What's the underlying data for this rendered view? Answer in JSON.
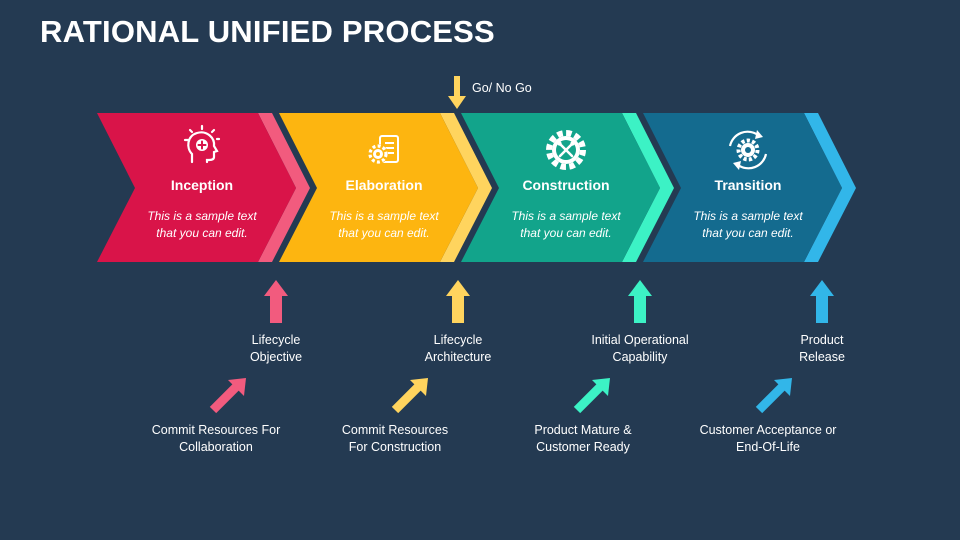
{
  "title": "RATIONAL UNIFIED PROCESS",
  "gate_label": "Go/ No Go",
  "phases": [
    {
      "name": "Inception",
      "desc_line1": "This is a sample text",
      "desc_line2": "that you can edit.",
      "color": "#D91449",
      "accent": "#F25B7E",
      "icon": "head-plus-icon"
    },
    {
      "name": "Elaboration",
      "desc_line1": "This is a sample text",
      "desc_line2": "that you can edit.",
      "color": "#FDB510",
      "accent": "#FFD45E",
      "icon": "document-gear-icon"
    },
    {
      "name": "Construction",
      "desc_line1": "This is a sample text",
      "desc_line2": "that you can edit.",
      "color": "#12A48B",
      "accent": "#3CF2C5",
      "icon": "gear-tools-icon"
    },
    {
      "name": "Transition",
      "desc_line1": "This is a sample text",
      "desc_line2": "that you can edit.",
      "color": "#146B8F",
      "accent": "#32B6E9",
      "icon": "gear-cycle-icon"
    }
  ],
  "milestones": [
    {
      "line1": "Lifecycle",
      "line2": "Objective"
    },
    {
      "line1": "Lifecycle",
      "line2": "Architecture"
    },
    {
      "line1": "Initial Operational",
      "line2": "Capability"
    },
    {
      "line1": "Product",
      "line2": "Release"
    }
  ],
  "transitions": [
    {
      "line1": "Commit Resources For",
      "line2": "Collaboration"
    },
    {
      "line1": "Commit Resources",
      "line2": "For Construction"
    },
    {
      "line1": "Product Mature &",
      "line2": "Customer Ready"
    },
    {
      "line1": "Customer Acceptance or",
      "line2": "End-Of-Life"
    }
  ]
}
